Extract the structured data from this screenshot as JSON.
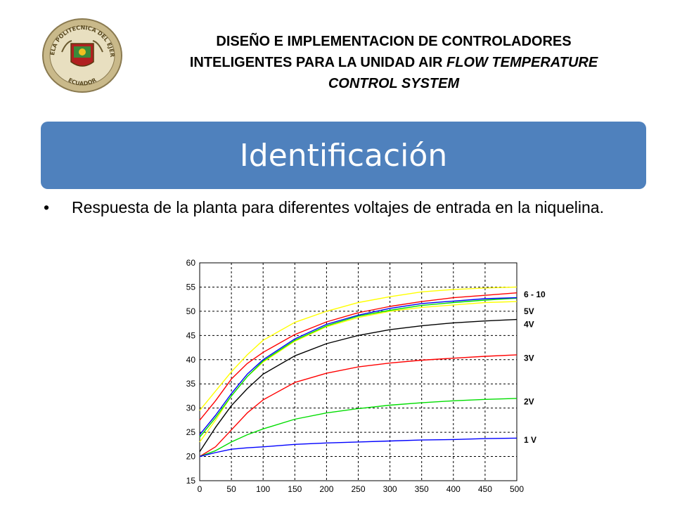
{
  "logo": {
    "text_top": "ESCUELA POLITECNICA DEL EJERCITO",
    "text_bottom": "ECUADOR"
  },
  "title": {
    "line1": "DISEÑO E IMPLEMENTACION DE CONTROLADORES",
    "line2_regular": "INTELIGENTES PARA LA UNIDAD AIR ",
    "line2_italic": "FLOW TEMPERATURE",
    "line3_italic": "CONTROL SYSTEM"
  },
  "banner": {
    "text": "Identificación",
    "color": "#4f81bd"
  },
  "bullet": {
    "symbol": "•",
    "text": "Respuesta de la planta para diferentes voltajes de entrada en la niquelina."
  },
  "chart_data": {
    "type": "line",
    "xlim": [
      0,
      500
    ],
    "ylim": [
      15,
      60
    ],
    "xticks": [
      "0",
      "50",
      "100",
      "150",
      "200",
      "250",
      "300",
      "350",
      "400",
      "450",
      "500"
    ],
    "yticks": [
      "15",
      "20",
      "25",
      "30",
      "35",
      "40",
      "45",
      "50",
      "55",
      "60"
    ],
    "grid": true,
    "grid_style": "dashed",
    "x": [
      0,
      25,
      50,
      75,
      100,
      150,
      200,
      250,
      300,
      350,
      400,
      450,
      500
    ],
    "series": [
      {
        "color": "#ffff00",
        "values": [
          29.5,
          33.5,
          37.5,
          41,
          44,
          47.7,
          50,
          51.8,
          53,
          54,
          54.5,
          54.8,
          55
        ]
      },
      {
        "color": "#ff0000",
        "values": [
          27.5,
          31.5,
          36,
          39.2,
          41.5,
          45.2,
          47.8,
          49.7,
          51,
          52,
          52.8,
          53.3,
          53.8
        ]
      },
      {
        "color": "#ffff00",
        "values": [
          23,
          27.5,
          32.5,
          36.5,
          39.5,
          43.8,
          46.8,
          48.7,
          50,
          50.8,
          51.3,
          51.8,
          52
        ]
      },
      {
        "color": "#00dd00",
        "values": [
          24,
          28,
          32.5,
          36.5,
          39.7,
          44,
          47,
          49,
          50.2,
          51.2,
          51.8,
          52.3,
          52.7
        ]
      },
      {
        "color": "#0000ff",
        "values": [
          24.5,
          28.5,
          33,
          37,
          40,
          44.3,
          47.3,
          49.2,
          50.6,
          51.6,
          52.1,
          52.6,
          52.8
        ]
      },
      {
        "color": "#000000",
        "values": [
          21,
          26,
          30.5,
          34,
          37,
          40.8,
          43.3,
          45,
          46.2,
          47,
          47.6,
          48,
          48.3
        ]
      },
      {
        "color": "#ff0000",
        "values": [
          20,
          22,
          25.5,
          29,
          31.7,
          35.3,
          37.2,
          38.5,
          39.3,
          39.9,
          40.3,
          40.7,
          41
        ]
      },
      {
        "color": "#00dd00",
        "values": [
          20,
          21.2,
          23,
          24.5,
          25.7,
          27.7,
          29,
          29.9,
          30.6,
          31.1,
          31.5,
          31.8,
          32
        ]
      },
      {
        "color": "#0000ff",
        "values": [
          20,
          20.8,
          21.5,
          21.8,
          22,
          22.5,
          22.8,
          23,
          23.2,
          23.4,
          23.5,
          23.7,
          23.8
        ]
      }
    ],
    "annotations": [
      {
        "text": "6 - 10 V",
        "y": 53.5
      },
      {
        "text": "5V",
        "y": 50
      },
      {
        "text": "4V",
        "y": 47.3
      },
      {
        "text": "3V",
        "y": 40.3
      },
      {
        "text": "2V",
        "y": 31.3
      },
      {
        "text": "1 V",
        "y": 23.4
      }
    ]
  }
}
